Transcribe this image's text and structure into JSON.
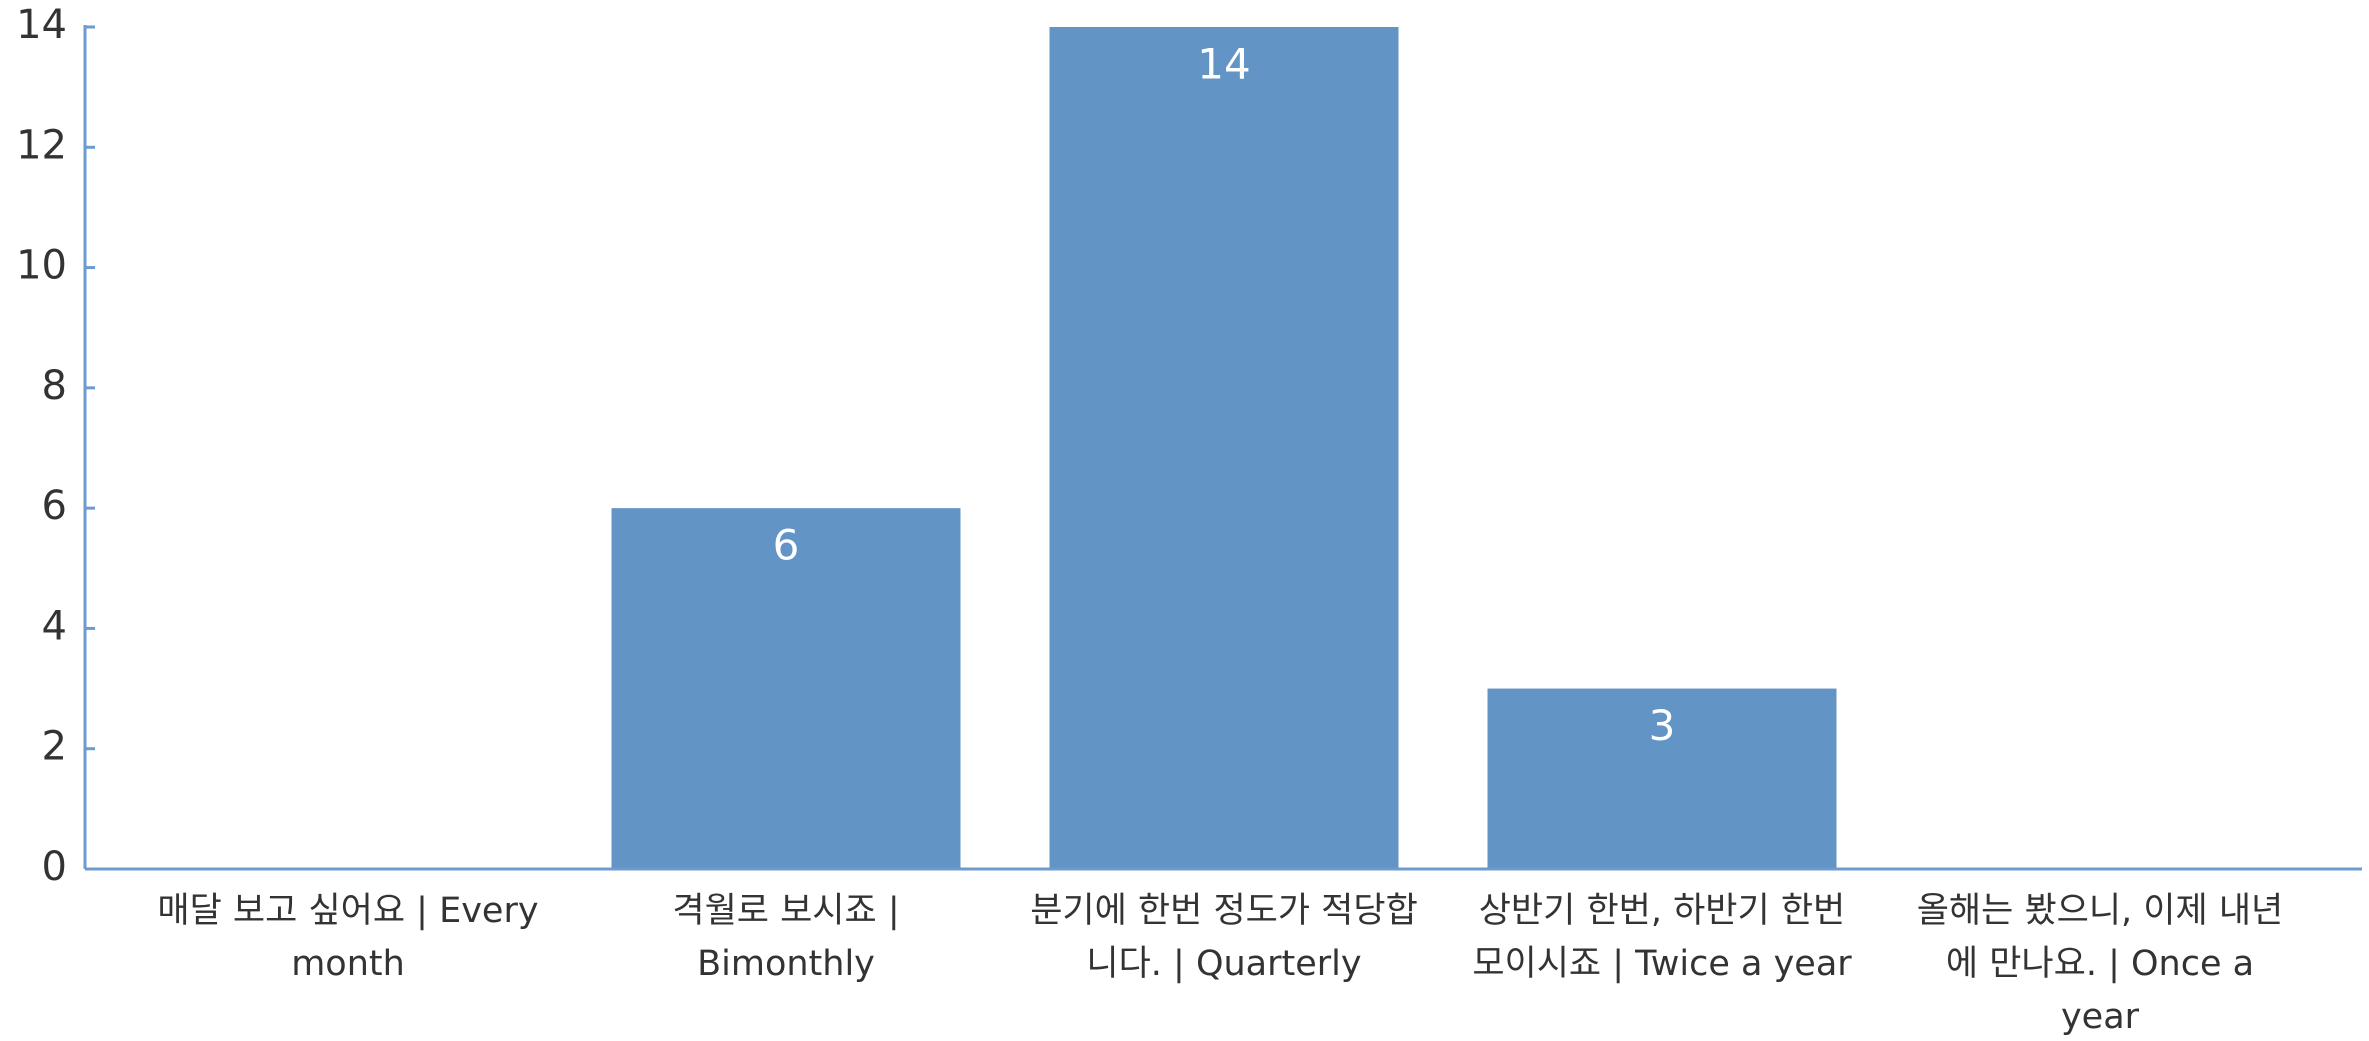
{
  "chart_data": {
    "type": "bar",
    "categories": [
      "매달 보고 싶어요 | Every month",
      "격월로 보시죠 | Bimonthly",
      "분기에 한번 정도가 적당합니다. | Quarterly",
      "상반기 한번, 하반기 한번 모이시죠 | Twice a year",
      "올해는 봤으니, 이제 내년에 만나요. | Once a year"
    ],
    "values": [
      0,
      6,
      14,
      3,
      0
    ],
    "color": "#6394c6",
    "ylim": [
      0,
      14
    ],
    "yticks": [
      0,
      2,
      4,
      6,
      8,
      10,
      12,
      14
    ],
    "grid": false
  }
}
